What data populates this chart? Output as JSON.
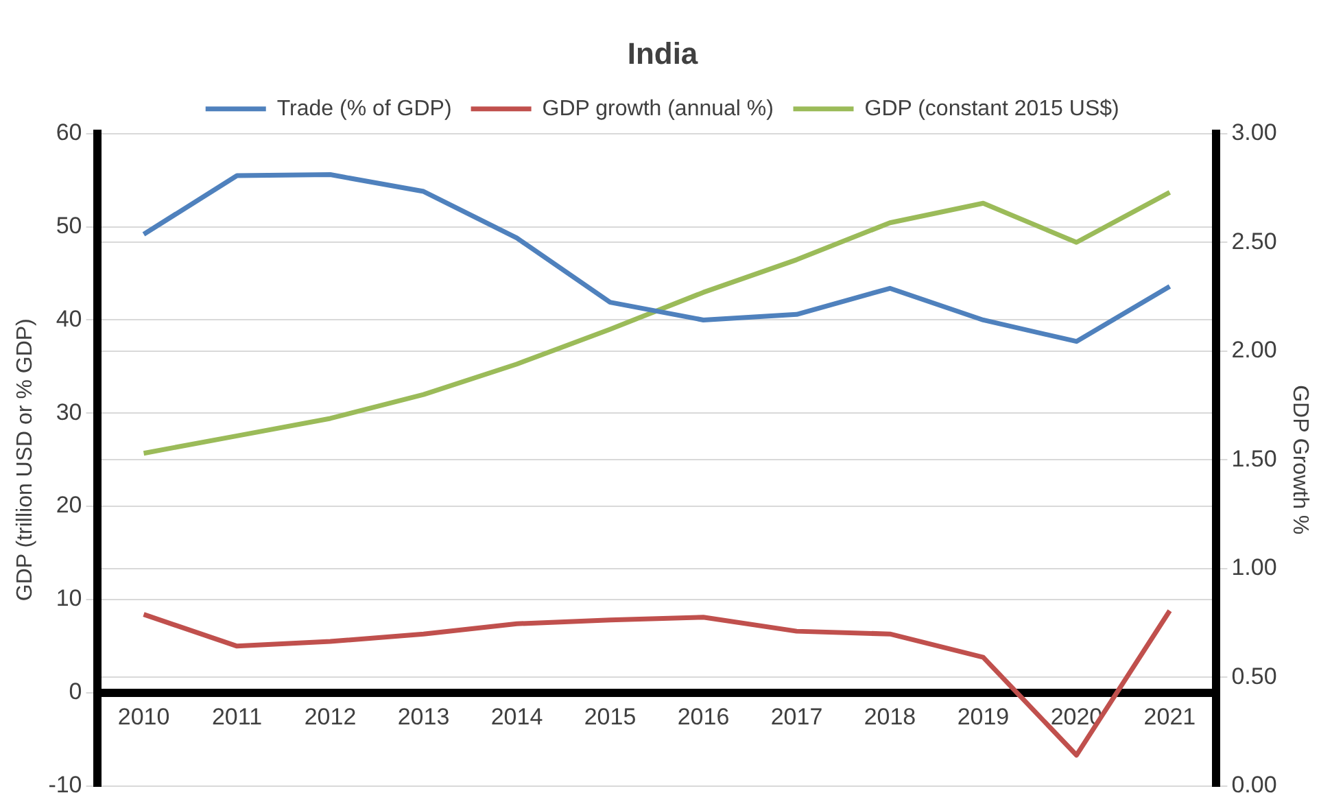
{
  "chart_data": {
    "type": "line",
    "title": "India",
    "ylabel": "GDP (trillion USD or % GDP)",
    "y2label": "GDP Growth %",
    "categories": [
      "2010",
      "2011",
      "2012",
      "2013",
      "2014",
      "2015",
      "2016",
      "2017",
      "2018",
      "2019",
      "2020",
      "2021"
    ],
    "series": [
      {
        "name": "Trade (% of GDP)",
        "color": "#4f81bd",
        "values": [
          49.2,
          55.5,
          55.6,
          53.8,
          48.8,
          41.9,
          40.0,
          40.6,
          43.4,
          40.0,
          37.7,
          43.6
        ]
      },
      {
        "name": "GDP growth (annual %)",
        "color": "#c0504d",
        "values": [
          8.4,
          5.0,
          5.5,
          6.3,
          7.4,
          7.8,
          8.1,
          6.6,
          6.3,
          3.8,
          -6.7,
          8.8
        ]
      },
      {
        "name": "GDP (constant 2015 US$)",
        "color": "#9bbb59",
        "axis": "y2",
        "values": [
          1.53,
          1.61,
          1.69,
          1.8,
          1.94,
          2.1,
          2.27,
          2.42,
          2.59,
          2.68,
          2.5,
          2.73
        ]
      }
    ],
    "ylim": [
      -10,
      60
    ],
    "yticks": [
      -10,
      0,
      10,
      20,
      30,
      40,
      50,
      60
    ],
    "y2lim": [
      0,
      3
    ],
    "y2ticks": [
      {
        "value": 0,
        "label": "0.00"
      },
      {
        "value": 0.5,
        "label": "0.50"
      },
      {
        "value": 1,
        "label": "1.00"
      },
      {
        "value": 1.5,
        "label": "1.50"
      },
      {
        "value": 2,
        "label": "2.00"
      },
      {
        "value": 2.5,
        "label": "2.50"
      },
      {
        "value": 3,
        "label": "3.00"
      }
    ],
    "grid": "y",
    "legend": "top",
    "marker": "none",
    "line_style": "solid"
  }
}
